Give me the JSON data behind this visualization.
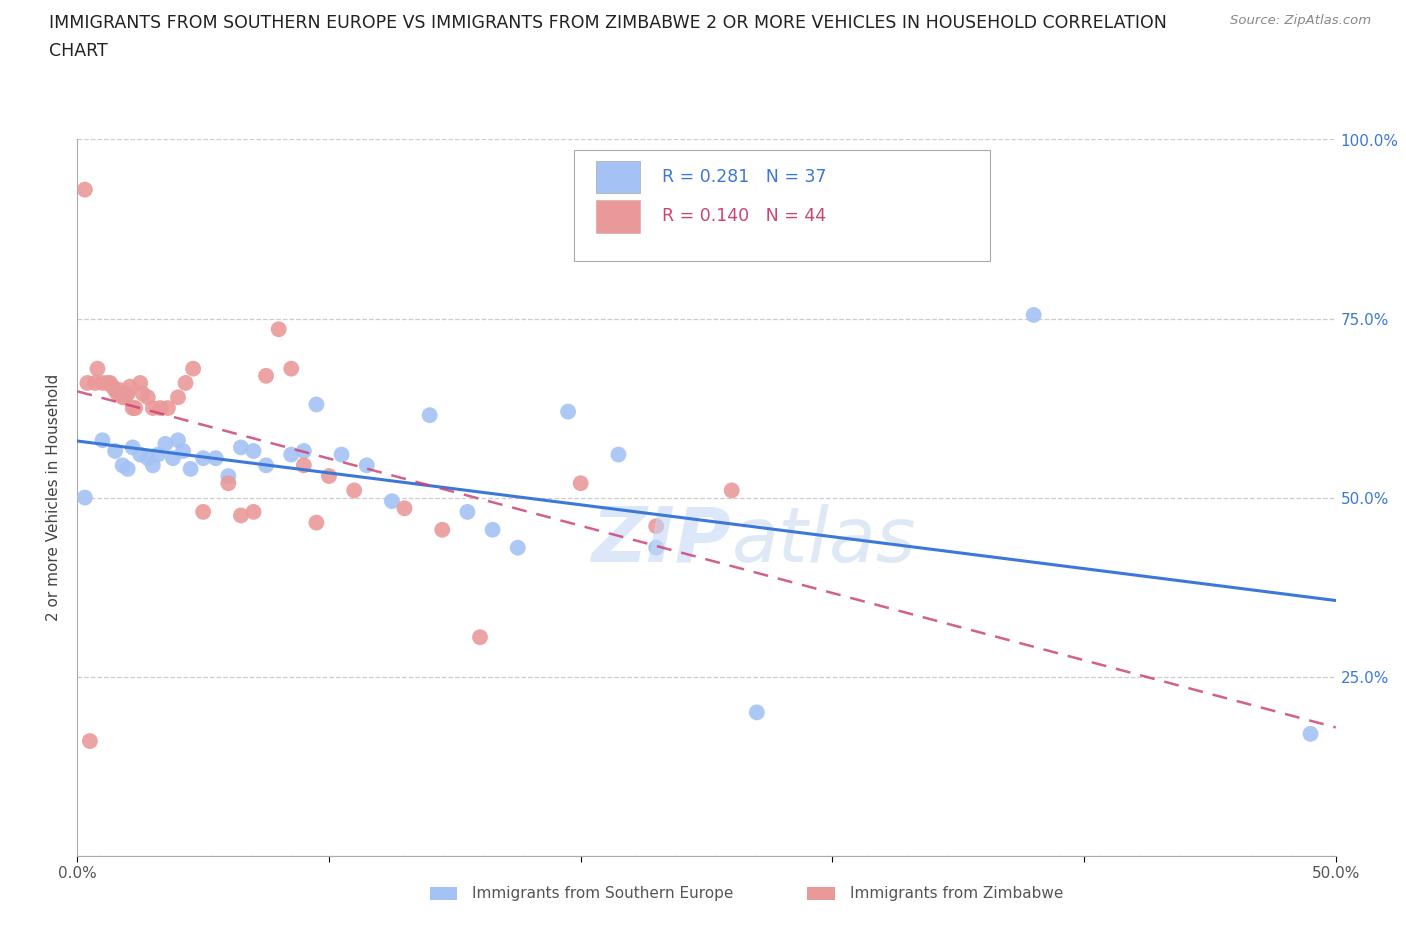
{
  "title_line1": "IMMIGRANTS FROM SOUTHERN EUROPE VS IMMIGRANTS FROM ZIMBABWE 2 OR MORE VEHICLES IN HOUSEHOLD CORRELATION",
  "title_line2": "CHART",
  "source": "Source: ZipAtlas.com",
  "ylabel": "2 or more Vehicles in Household",
  "legend_label1": "Immigrants from Southern Europe",
  "legend_label2": "Immigrants from Zimbabwe",
  "R1": 0.281,
  "N1": 37,
  "R2": 0.14,
  "N2": 44,
  "color_blue": "#a4c2f4",
  "color_pink": "#ea9999",
  "line_color_blue": "#3c78d8",
  "line_color_pink": "#cc4477",
  "xlim": [
    0.0,
    0.5
  ],
  "ylim": [
    0.0,
    1.0
  ],
  "xticks": [
    0.0,
    0.1,
    0.2,
    0.3,
    0.4,
    0.5
  ],
  "xticklabels": [
    "0.0%",
    "",
    "",
    "",
    "",
    "50.0%"
  ],
  "ytick_right_values": [
    0.0,
    0.25,
    0.5,
    0.75,
    1.0
  ],
  "ytick_right_labels": [
    "",
    "25.0%",
    "50.0%",
    "75.0%",
    "100.0%"
  ],
  "blue_x": [
    0.003,
    0.01,
    0.015,
    0.018,
    0.02,
    0.022,
    0.025,
    0.028,
    0.03,
    0.032,
    0.035,
    0.038,
    0.04,
    0.042,
    0.045,
    0.05,
    0.055,
    0.06,
    0.065,
    0.07,
    0.075,
    0.085,
    0.09,
    0.095,
    0.105,
    0.115,
    0.125,
    0.14,
    0.155,
    0.165,
    0.175,
    0.195,
    0.215,
    0.23,
    0.27,
    0.38,
    0.49
  ],
  "blue_y": [
    0.5,
    0.58,
    0.565,
    0.545,
    0.54,
    0.57,
    0.56,
    0.555,
    0.545,
    0.56,
    0.575,
    0.555,
    0.58,
    0.565,
    0.54,
    0.555,
    0.555,
    0.53,
    0.57,
    0.565,
    0.545,
    0.56,
    0.565,
    0.63,
    0.56,
    0.545,
    0.495,
    0.615,
    0.48,
    0.455,
    0.43,
    0.62,
    0.56,
    0.43,
    0.2,
    0.755,
    0.17
  ],
  "pink_x": [
    0.003,
    0.005,
    0.007,
    0.008,
    0.01,
    0.012,
    0.013,
    0.014,
    0.015,
    0.016,
    0.017,
    0.018,
    0.019,
    0.02,
    0.021,
    0.022,
    0.023,
    0.025,
    0.026,
    0.028,
    0.03,
    0.033,
    0.036,
    0.04,
    0.043,
    0.046,
    0.05,
    0.06,
    0.065,
    0.07,
    0.075,
    0.08,
    0.085,
    0.09,
    0.095,
    0.1,
    0.11,
    0.13,
    0.145,
    0.16,
    0.2,
    0.23,
    0.26,
    0.004
  ],
  "pink_y": [
    0.93,
    0.16,
    0.66,
    0.68,
    0.66,
    0.66,
    0.66,
    0.655,
    0.65,
    0.645,
    0.65,
    0.64,
    0.64,
    0.645,
    0.655,
    0.625,
    0.625,
    0.66,
    0.645,
    0.64,
    0.625,
    0.625,
    0.625,
    0.64,
    0.66,
    0.68,
    0.48,
    0.52,
    0.475,
    0.48,
    0.67,
    0.735,
    0.68,
    0.545,
    0.465,
    0.53,
    0.51,
    0.485,
    0.455,
    0.305,
    0.52,
    0.46,
    0.51,
    0.66
  ],
  "background_color": "#ffffff",
  "grid_color": "#cccccc",
  "watermark_text": "ZIPatlas"
}
